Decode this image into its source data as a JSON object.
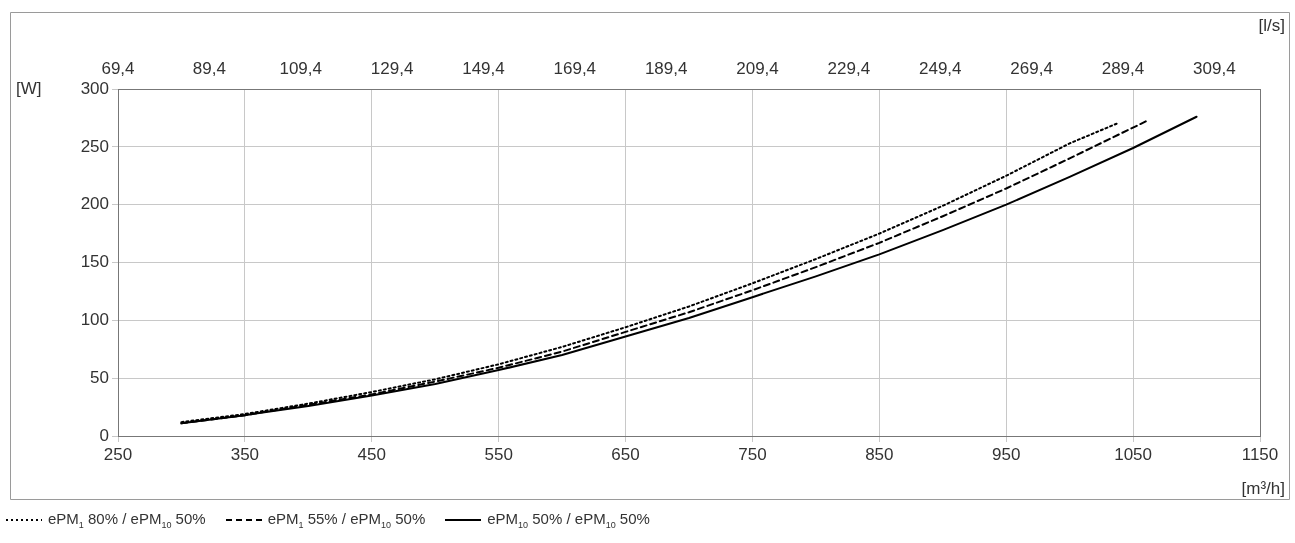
{
  "chart_data": {
    "type": "line",
    "xlabel": "[m³/h]",
    "ylabel": "[W]",
    "x2label": "[l/s]",
    "xlim": [
      250,
      1150
    ],
    "xticks": [
      250,
      350,
      450,
      550,
      650,
      750,
      850,
      950,
      1050,
      1150
    ],
    "ylim": [
      0,
      300
    ],
    "yticks": [
      0,
      50,
      100,
      150,
      200,
      250,
      300
    ],
    "x2lim": [
      69.4,
      319.4
    ],
    "x2ticks": [
      {
        "value": 69.4,
        "label": "69,4"
      },
      {
        "value": 89.4,
        "label": "89,4"
      },
      {
        "value": 109.4,
        "label": "109,4"
      },
      {
        "value": 129.4,
        "label": "129,4"
      },
      {
        "value": 149.4,
        "label": "149,4"
      },
      {
        "value": 169.4,
        "label": "169,4"
      },
      {
        "value": 189.4,
        "label": "189,4"
      },
      {
        "value": 209.4,
        "label": "209,4"
      },
      {
        "value": 229.4,
        "label": "229,4"
      },
      {
        "value": 249.4,
        "label": "249,4"
      },
      {
        "value": 269.4,
        "label": "269,4"
      },
      {
        "value": 289.4,
        "label": "289,4"
      },
      {
        "value": 309.4,
        "label": "309,4"
      }
    ],
    "grid": true,
    "legend": "bottom left",
    "marker": "none",
    "series": [
      {
        "name": "ePM$_{1}$ 80% / ePM$_{10}$ 50%",
        "color": "#000000",
        "line_style": "dotted",
        "x": [
          300,
          350,
          400,
          450,
          500,
          550,
          600,
          650,
          700,
          750,
          800,
          850,
          900,
          950,
          1000,
          1037
        ],
        "values": [
          12,
          19,
          28,
          38,
          49,
          62,
          77,
          94,
          112,
          132,
          153,
          175,
          199,
          225,
          253,
          270
        ]
      },
      {
        "name": "ePM$_{1}$ 55% / ePM$_{10}$ 50%",
        "color": "#000000",
        "line_style": "dashed",
        "x": [
          300,
          350,
          400,
          450,
          500,
          550,
          600,
          650,
          700,
          750,
          800,
          850,
          900,
          950,
          1000,
          1060
        ],
        "values": [
          11,
          18,
          27,
          36,
          47,
          59,
          73,
          90,
          107,
          126,
          146,
          167,
          190,
          214,
          240,
          272
        ]
      },
      {
        "name": "ePM$_{10}$ 50% / ePM$_{10}$ 50%",
        "color": "#000000",
        "line_style": "solid",
        "x": [
          300,
          350,
          400,
          450,
          500,
          550,
          600,
          650,
          700,
          750,
          800,
          850,
          900,
          950,
          1000,
          1050,
          1100
        ],
        "values": [
          11,
          18,
          26,
          35,
          45,
          57,
          70,
          86,
          102,
          120,
          138,
          157,
          178,
          200,
          224,
          249,
          276
        ]
      }
    ]
  }
}
